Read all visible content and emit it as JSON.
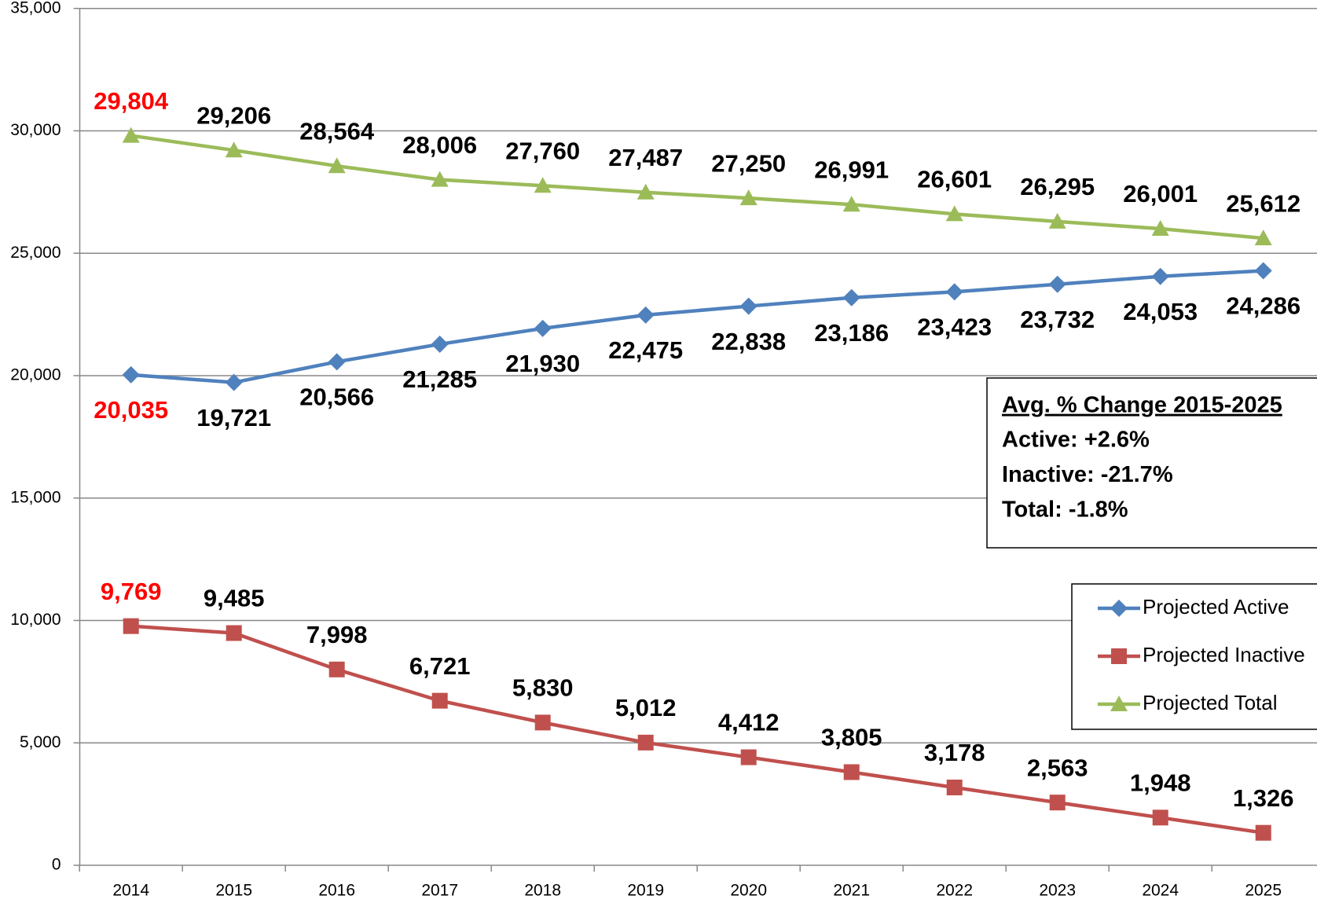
{
  "chart_data": {
    "type": "line",
    "categories": [
      "2014",
      "2015",
      "2016",
      "2017",
      "2018",
      "2019",
      "2020",
      "2021",
      "2022",
      "2023",
      "2024",
      "2025"
    ],
    "series": [
      {
        "name": "Projected Active",
        "color": "#4f81bd",
        "marker": "diamond",
        "label_position": "below",
        "values": [
          20035,
          19721,
          20566,
          21285,
          21930,
          22475,
          22838,
          23186,
          23423,
          23732,
          24053,
          24286
        ],
        "value_labels": [
          "20,035",
          "19,721",
          "20,566",
          "21,285",
          "21,930",
          "22,475",
          "22,838",
          "23,186",
          "23,423",
          "23,732",
          "24,053",
          "24,286"
        ],
        "value_label_colors": [
          "#ff0000",
          "#000000",
          "#000000",
          "#000000",
          "#000000",
          "#000000",
          "#000000",
          "#000000",
          "#000000",
          "#000000",
          "#000000",
          "#000000"
        ]
      },
      {
        "name": "Projected Inactive",
        "color": "#c0504d",
        "marker": "square",
        "label_position": "above",
        "values": [
          9769,
          9485,
          7998,
          6721,
          5830,
          5012,
          4412,
          3805,
          3178,
          2563,
          1948,
          1326
        ],
        "value_labels": [
          "9,769",
          "9,485",
          "7,998",
          "6,721",
          "5,830",
          "5,012",
          "4,412",
          "3,805",
          "3,178",
          "2,563",
          "1,948",
          "1,326"
        ],
        "value_label_colors": [
          "#ff0000",
          "#000000",
          "#000000",
          "#000000",
          "#000000",
          "#000000",
          "#000000",
          "#000000",
          "#000000",
          "#000000",
          "#000000",
          "#000000"
        ]
      },
      {
        "name": "Projected Total",
        "color": "#9bbb59",
        "marker": "triangle",
        "label_position": "above",
        "values": [
          29804,
          29206,
          28564,
          28006,
          27760,
          27487,
          27250,
          26991,
          26601,
          26295,
          26001,
          25612
        ],
        "value_labels": [
          "29,804",
          "29,206",
          "28,564",
          "28,006",
          "27,760",
          "27,487",
          "27,250",
          "26,991",
          "26,601",
          "26,295",
          "26,001",
          "25,612"
        ],
        "value_label_colors": [
          "#ff0000",
          "#000000",
          "#000000",
          "#000000",
          "#000000",
          "#000000",
          "#000000",
          "#000000",
          "#000000",
          "#000000",
          "#000000",
          "#000000"
        ]
      }
    ],
    "ylim": [
      0,
      35000
    ],
    "yticks": [
      0,
      {
        "value": 5000,
        "label": "5,000"
      },
      {
        "value": 10000,
        "label": "10,000"
      },
      {
        "value": 15000,
        "label": "15,000"
      },
      {
        "value": 20000,
        "label": "20,000"
      },
      {
        "value": 25000,
        "label": "25,000"
      },
      {
        "value": 30000,
        "label": "30,000"
      },
      {
        "value": 35000,
        "label": "35,000"
      }
    ],
    "grid": true,
    "legend": "right",
    "annotation": {
      "title": "Avg. % Change 2015-2025",
      "lines": [
        "Active: +2.6%",
        "Inactive: -21.7%",
        "Total: -1.8%"
      ]
    }
  }
}
